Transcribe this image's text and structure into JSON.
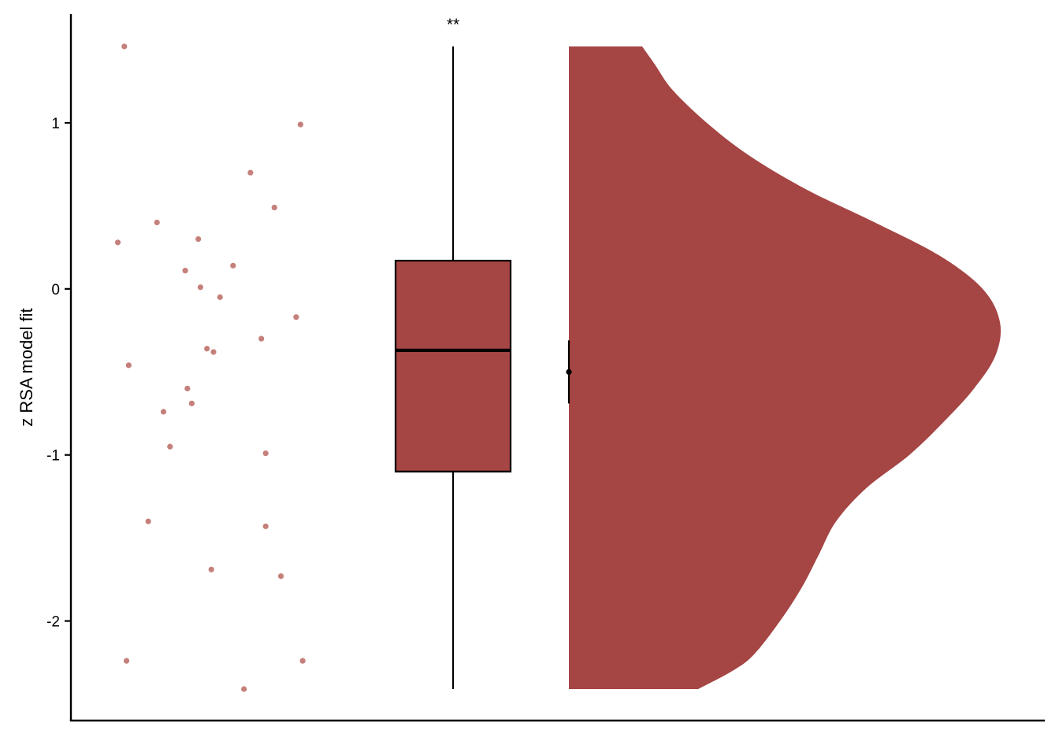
{
  "chart_data": {
    "type": "raincloud",
    "title": "",
    "xlabel": "",
    "ylabel": "z RSA model fit",
    "ylim": [
      -2.6,
      1.65
    ],
    "yticks": [
      -2,
      -1,
      0,
      1
    ],
    "ytick_labels": [
      "-2",
      "-1",
      "0",
      "1"
    ],
    "grid": false,
    "legend": "none",
    "significance_label": "**",
    "fill_color": "#a54544",
    "point_color": "#c5807b",
    "points": [
      {
        "x": 0.05,
        "y": 1.46
      },
      {
        "x": 0.86,
        "y": 0.99
      },
      {
        "x": 0.63,
        "y": 0.7
      },
      {
        "x": 0.74,
        "y": 0.49
      },
      {
        "x": 0.2,
        "y": 0.4
      },
      {
        "x": 0.02,
        "y": 0.28
      },
      {
        "x": 0.39,
        "y": 0.3
      },
      {
        "x": 0.55,
        "y": 0.14
      },
      {
        "x": 0.33,
        "y": 0.11
      },
      {
        "x": 0.4,
        "y": 0.01
      },
      {
        "x": 0.49,
        "y": -0.05
      },
      {
        "x": 0.84,
        "y": -0.17
      },
      {
        "x": 0.68,
        "y": -0.3
      },
      {
        "x": 0.43,
        "y": -0.36
      },
      {
        "x": 0.46,
        "y": -0.38
      },
      {
        "x": 0.07,
        "y": -0.46
      },
      {
        "x": 0.34,
        "y": -0.6
      },
      {
        "x": 0.36,
        "y": -0.69
      },
      {
        "x": 0.23,
        "y": -0.74
      },
      {
        "x": 0.26,
        "y": -0.95
      },
      {
        "x": 0.7,
        "y": -0.99
      },
      {
        "x": 0.16,
        "y": -1.4
      },
      {
        "x": 0.7,
        "y": -1.43
      },
      {
        "x": 0.45,
        "y": -1.69
      },
      {
        "x": 0.77,
        "y": -1.73
      },
      {
        "x": 0.06,
        "y": -2.24
      },
      {
        "x": 0.87,
        "y": -2.24
      },
      {
        "x": 0.6,
        "y": -2.41
      }
    ],
    "boxplot": {
      "min": -2.41,
      "q1": -1.1,
      "median": -0.37,
      "q3": 0.17,
      "max": 1.46
    },
    "mean": {
      "value": -0.5,
      "lower": -0.69,
      "upper": -0.31
    },
    "density": {
      "y": [
        -2.41,
        -2.3,
        -2.2,
        -2.0,
        -1.8,
        -1.6,
        -1.4,
        -1.2,
        -1.0,
        -0.8,
        -0.6,
        -0.4,
        -0.2,
        0.0,
        0.2,
        0.4,
        0.6,
        0.8,
        1.0,
        1.2,
        1.35,
        1.46
      ],
      "value": [
        0.3,
        0.38,
        0.43,
        0.49,
        0.54,
        0.58,
        0.62,
        0.69,
        0.79,
        0.87,
        0.94,
        0.99,
        1.0,
        0.96,
        0.86,
        0.71,
        0.55,
        0.42,
        0.32,
        0.24,
        0.2,
        0.17
      ]
    }
  }
}
